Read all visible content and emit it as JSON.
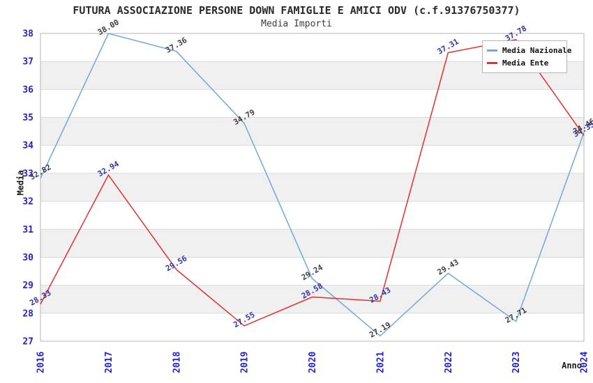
{
  "chart_data": {
    "type": "line",
    "title": "FUTURA ASSOCIAZIONE PERSONE DOWN FAMIGLIE E AMICI ODV (c.f.91376750377)",
    "subtitle": "Media Importi",
    "xlabel": "Anno",
    "ylabel": "Media",
    "x": [
      "2016",
      "2017",
      "2018",
      "2019",
      "2020",
      "2021",
      "2022",
      "2023",
      "2024"
    ],
    "series": [
      {
        "name": "Media Nazionale",
        "color": "#6fa8dc",
        "label_color": "#3f3f3f",
        "values": [
          32.82,
          38.0,
          37.36,
          34.79,
          29.24,
          27.19,
          29.43,
          27.71,
          34.46
        ]
      },
      {
        "name": "Media Ente",
        "color": "#e62e2e",
        "label_color": "#3434a6",
        "values": [
          28.33,
          32.94,
          29.56,
          27.55,
          28.58,
          28.43,
          37.31,
          37.78,
          34.35
        ]
      }
    ],
    "ylim": [
      27,
      38
    ],
    "y_ticks": [
      27,
      28,
      29,
      30,
      31,
      32,
      33,
      34,
      35,
      36,
      37,
      38
    ],
    "grid": true,
    "alternating_bands": true,
    "legend_position": "top-right",
    "colors": {
      "band": "#f0f0f0",
      "gridline": "#dadada",
      "plot_border": "#b4b4b4",
      "tick_label": "#2323cc"
    }
  }
}
